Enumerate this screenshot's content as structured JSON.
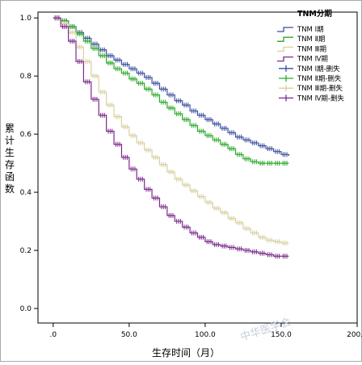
{
  "chart_data": {
    "type": "line",
    "subtype": "kaplan-meier survival curves (step)",
    "xlabel": "生存时间（月）",
    "ylabel": "累计生存函数",
    "xlim": [
      -10,
      200
    ],
    "ylim": [
      -0.05,
      1.02
    ],
    "x_ticks": [
      0,
      50,
      100,
      150,
      200
    ],
    "x_tick_labels": [
      ".0",
      "50.0",
      "100.0",
      "150.0",
      "200.0"
    ],
    "y_ticks": [
      0.0,
      0.2,
      0.4,
      0.6,
      0.8,
      1.0
    ],
    "y_tick_labels": [
      "0.0",
      "0.2",
      "0.4",
      "0.6",
      "0.8",
      "1.0"
    ],
    "grid": false,
    "legend": {
      "title": "TNM分期",
      "placement": "top-right",
      "entries": [
        {
          "label": "TNM Ⅰ期",
          "color": "#3a4f9e",
          "marker": "line"
        },
        {
          "label": "TNM Ⅱ期",
          "color": "#2aa82a",
          "marker": "line"
        },
        {
          "label": "TNM Ⅲ期",
          "color": "#d8d0a0",
          "marker": "line"
        },
        {
          "label": "TNM Ⅳ期",
          "color": "#7b2a8c",
          "marker": "line"
        },
        {
          "label": "TNM Ⅰ期-删失",
          "color": "#3a4f9e",
          "marker": "cross"
        },
        {
          "label": "TNM Ⅱ期-删失",
          "color": "#2aa82a",
          "marker": "cross"
        },
        {
          "label": "TNM Ⅲ期-删失",
          "color": "#d8d0a0",
          "marker": "cross"
        },
        {
          "label": "TNM Ⅳ期-删失",
          "color": "#7b2a8c",
          "marker": "cross"
        }
      ]
    },
    "series": [
      {
        "name": "TNM Ⅰ期",
        "color": "#3a4f9e",
        "x": [
          0,
          5,
          10,
          15,
          20,
          25,
          30,
          35,
          40,
          45,
          50,
          55,
          60,
          65,
          70,
          75,
          80,
          85,
          90,
          95,
          100,
          105,
          110,
          115,
          120,
          125,
          130,
          135,
          140,
          145,
          150,
          155
        ],
        "y": [
          1.0,
          0.99,
          0.97,
          0.95,
          0.93,
          0.91,
          0.89,
          0.87,
          0.855,
          0.84,
          0.825,
          0.81,
          0.795,
          0.775,
          0.755,
          0.735,
          0.715,
          0.7,
          0.68,
          0.665,
          0.65,
          0.635,
          0.62,
          0.605,
          0.59,
          0.58,
          0.57,
          0.56,
          0.55,
          0.54,
          0.53,
          0.525
        ]
      },
      {
        "name": "TNM Ⅱ期",
        "color": "#2aa82a",
        "x": [
          0,
          5,
          10,
          15,
          20,
          25,
          30,
          35,
          40,
          45,
          50,
          55,
          60,
          65,
          70,
          75,
          80,
          85,
          90,
          95,
          100,
          105,
          110,
          115,
          120,
          125,
          130,
          135,
          140,
          145,
          150,
          155
        ],
        "y": [
          1.0,
          0.99,
          0.97,
          0.945,
          0.92,
          0.895,
          0.87,
          0.845,
          0.825,
          0.81,
          0.79,
          0.775,
          0.755,
          0.735,
          0.71,
          0.69,
          0.67,
          0.65,
          0.63,
          0.61,
          0.595,
          0.58,
          0.565,
          0.55,
          0.53,
          0.515,
          0.505,
          0.5,
          0.5,
          0.5,
          0.5,
          0.5
        ]
      },
      {
        "name": "TNM Ⅲ期",
        "color": "#d8d0a0",
        "x": [
          0,
          5,
          10,
          15,
          20,
          25,
          30,
          35,
          40,
          45,
          50,
          55,
          60,
          65,
          70,
          75,
          80,
          85,
          90,
          95,
          100,
          105,
          110,
          115,
          120,
          125,
          130,
          135,
          140,
          145,
          150,
          155
        ],
        "y": [
          1.0,
          0.98,
          0.95,
          0.9,
          0.85,
          0.8,
          0.745,
          0.7,
          0.66,
          0.625,
          0.595,
          0.57,
          0.545,
          0.52,
          0.495,
          0.47,
          0.445,
          0.425,
          0.405,
          0.385,
          0.365,
          0.345,
          0.33,
          0.31,
          0.295,
          0.275,
          0.26,
          0.245,
          0.235,
          0.23,
          0.225,
          0.225
        ]
      },
      {
        "name": "TNM Ⅳ期",
        "color": "#7b2a8c",
        "x": [
          0,
          5,
          10,
          15,
          20,
          25,
          30,
          35,
          40,
          45,
          50,
          55,
          60,
          65,
          70,
          75,
          80,
          85,
          90,
          95,
          100,
          105,
          110,
          115,
          120,
          125,
          130,
          135,
          140,
          145,
          150,
          155
        ],
        "y": [
          1.0,
          0.97,
          0.92,
          0.85,
          0.78,
          0.72,
          0.665,
          0.61,
          0.565,
          0.52,
          0.48,
          0.445,
          0.41,
          0.38,
          0.35,
          0.32,
          0.3,
          0.28,
          0.26,
          0.245,
          0.23,
          0.22,
          0.215,
          0.21,
          0.205,
          0.2,
          0.195,
          0.19,
          0.185,
          0.18,
          0.18,
          0.18
        ]
      }
    ],
    "watermark": "中华医学会"
  }
}
